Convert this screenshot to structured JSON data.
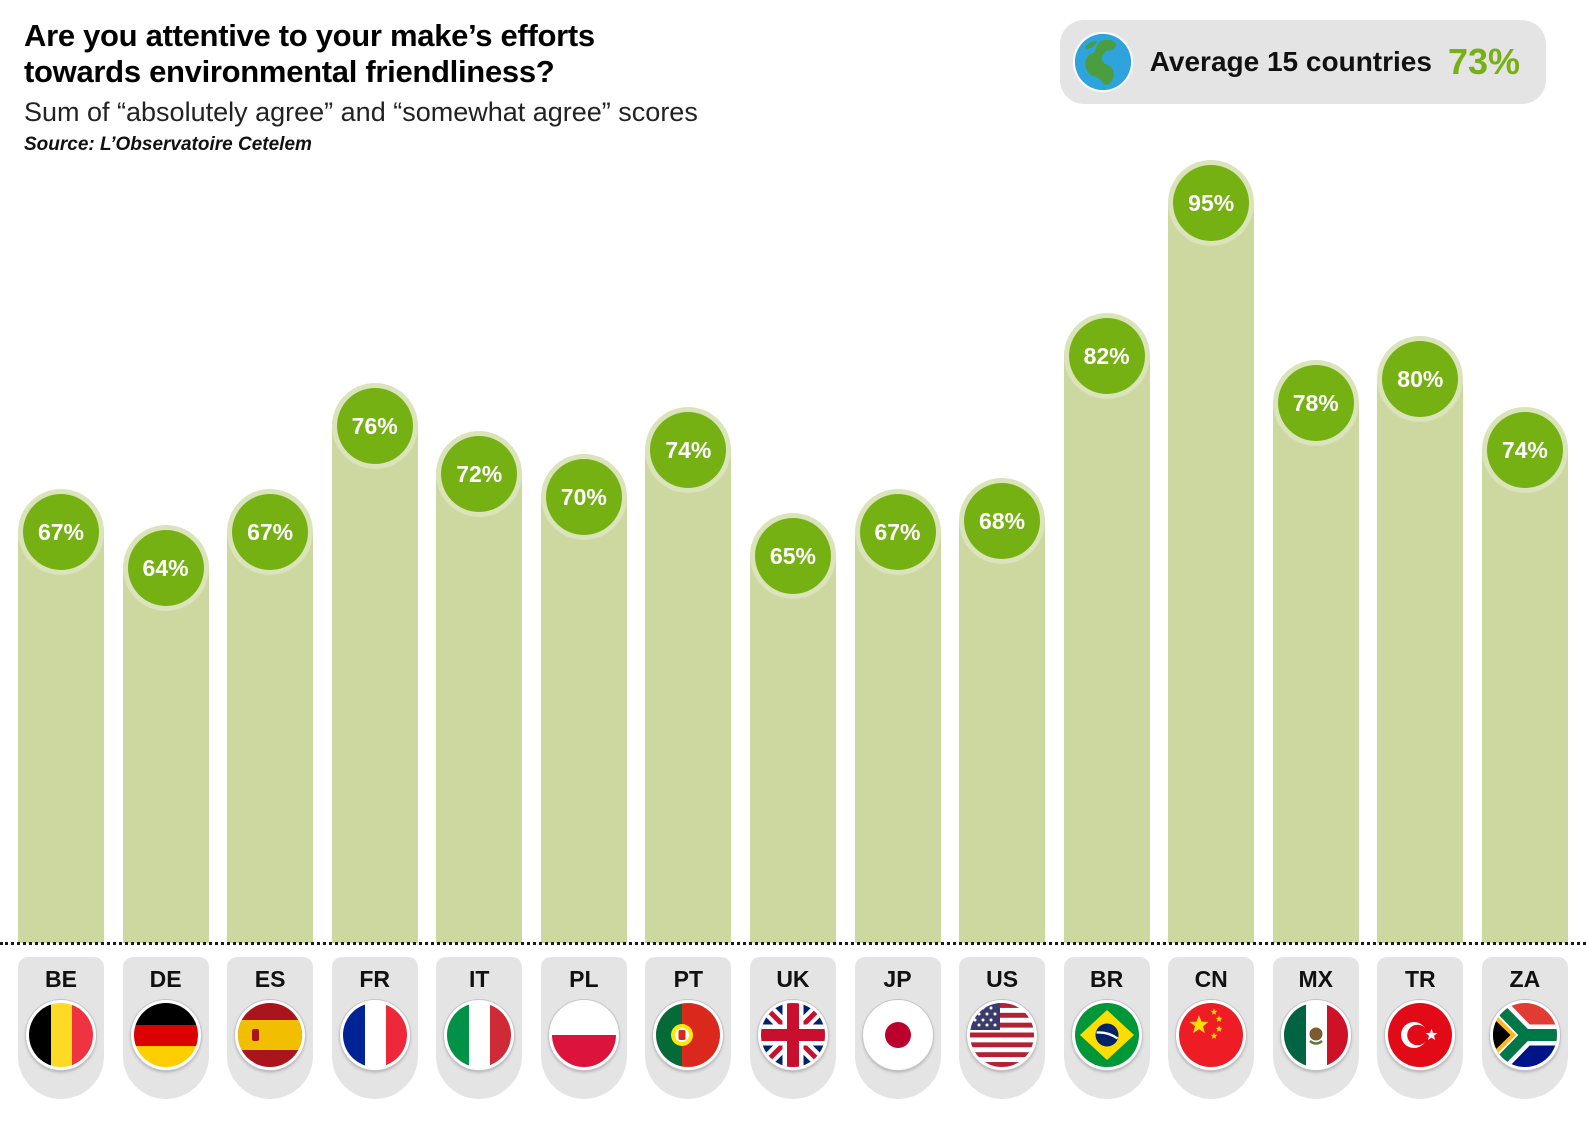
{
  "header": {
    "title_line1": "Are you attentive to your make’s efforts",
    "title_line2": "towards environmental friendliness?",
    "subtitle": "Sum of “absolutely agree” and “somewhat agree” scores",
    "source": "Source: L’Observatoire Cetelem"
  },
  "average_badge": {
    "icon": "globe-icon",
    "label": "Average 15 countries",
    "value": "73%"
  },
  "colors": {
    "bar_fill": "#ccd8a0",
    "bubble_green": "#76b113",
    "accent_green": "#76b113",
    "tile_gray": "#e4e4e4",
    "text_black": "#111111"
  },
  "chart_data": {
    "type": "bar",
    "title": "Are you attentive to your make’s efforts towards environmental friendliness?",
    "subtitle": "Sum of “absolutely agree” and “somewhat agree” scores",
    "source": "Source: L’Observatoire Cetelem",
    "unit": "%",
    "categories": [
      "BE",
      "DE",
      "ES",
      "FR",
      "IT",
      "PL",
      "PT",
      "UK",
      "JP",
      "US",
      "BR",
      "CN",
      "MX",
      "TR",
      "ZA"
    ],
    "values": [
      67,
      64,
      67,
      76,
      72,
      70,
      74,
      65,
      67,
      68,
      82,
      95,
      78,
      80,
      74
    ],
    "value_labels": [
      "67%",
      "64%",
      "67%",
      "76%",
      "72%",
      "70%",
      "74%",
      "65%",
      "67%",
      "68%",
      "82%",
      "95%",
      "78%",
      "80%",
      "74%"
    ],
    "average_countries": 15,
    "average_value": 73,
    "ylim": [
      0,
      100
    ],
    "grid": false,
    "legend_position": "none"
  }
}
